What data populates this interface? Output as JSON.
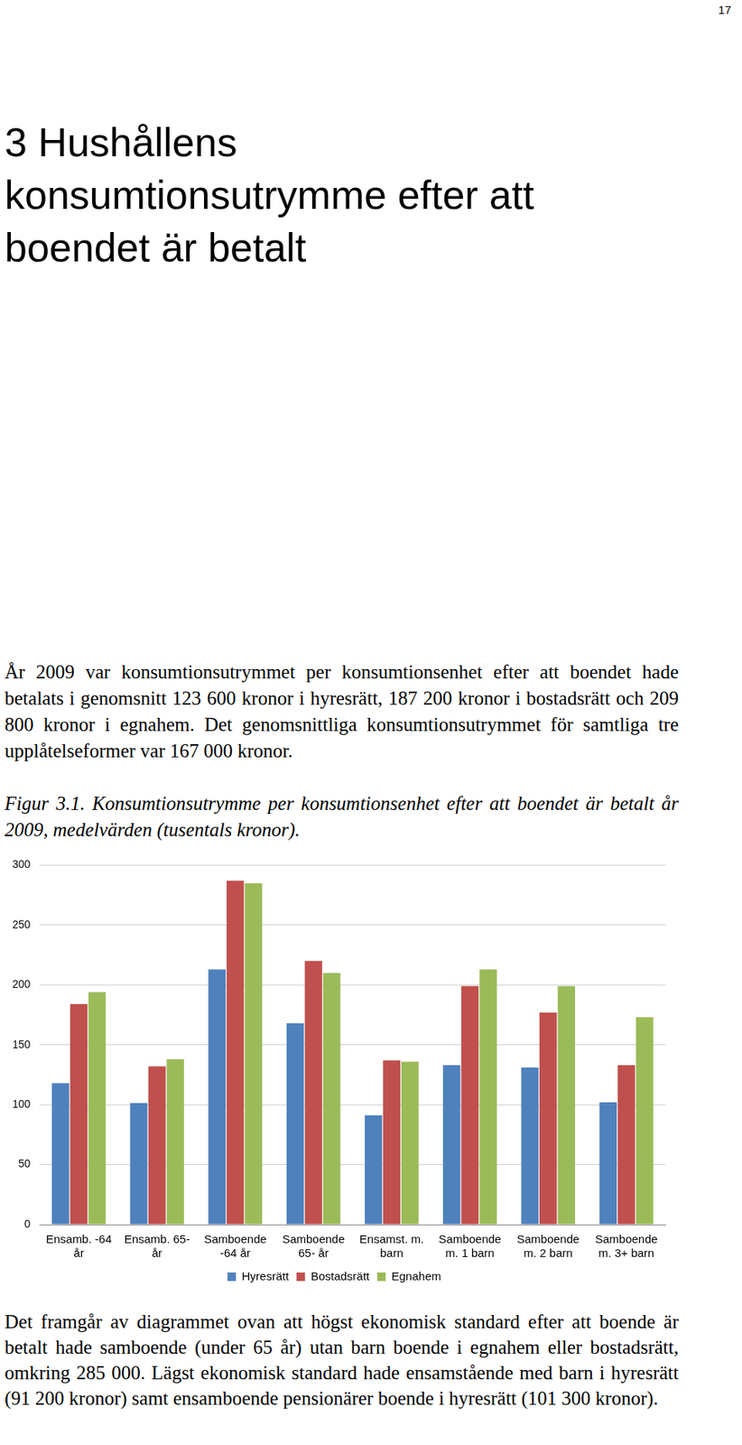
{
  "page": {
    "number": "17",
    "heading": "3 Hushållens konsumtionsutrymme efter att boendet är betalt",
    "intro": "År 2009 var konsumtionsutrymmet per konsumtionsenhet efter att boendet hade betalats i genomsnitt 123 600 kronor i hyresrätt, 187 200 kronor i bostadsrätt och 209 800 kronor i egnahem. Det genomsnittliga konsumtionsutrymmet för samtliga tre upplåtelseformer var 167 000 kronor.",
    "caption": "Figur 3.1. Konsumtionsutrymme per konsumtionsenhet efter att boendet är betalt år 2009, medelvärden (tusentals kronor).",
    "conclusion": "Det framgår av diagrammet ovan att högst ekonomisk standard efter att boende är betalt hade samboende (under 65 år) utan barn boende i egnahem eller bostadsrätt, omkring 285 000. Lägst ekonomisk standard hade ensamstående med barn i hyresrätt (91 200 kronor) samt ensamboende pensionärer boende i hyresrätt (101 300 kronor)."
  },
  "chart_data": {
    "type": "bar",
    "categories": [
      [
        "Ensamb. -64",
        "år"
      ],
      [
        "Ensamb. 65-",
        "år"
      ],
      [
        "Samboende",
        "-64 år"
      ],
      [
        "Samboende",
        "65- år"
      ],
      [
        "Ensamst. m.",
        "barn"
      ],
      [
        "Samboende",
        "m. 1 barn"
      ],
      [
        "Samboende",
        "m. 2 barn"
      ],
      [
        "Samboende",
        "m. 3+ barn"
      ]
    ],
    "series": [
      {
        "name": "Hyresrätt",
        "color": "#4f81bd",
        "values": [
          118,
          101.3,
          213,
          168,
          91.2,
          133,
          131,
          102
        ]
      },
      {
        "name": "Bostadsrätt",
        "color": "#c0504d",
        "values": [
          184,
          132,
          287,
          220,
          137,
          199,
          177,
          133
        ]
      },
      {
        "name": "Egnahem",
        "color": "#9bbb59",
        "values": [
          194,
          138,
          285,
          210,
          136,
          213,
          199,
          173
        ]
      }
    ],
    "ylim": [
      0,
      300
    ],
    "yticks": [
      0,
      50,
      100,
      150,
      200,
      250,
      300
    ],
    "grid": true,
    "legend": "bottom"
  }
}
